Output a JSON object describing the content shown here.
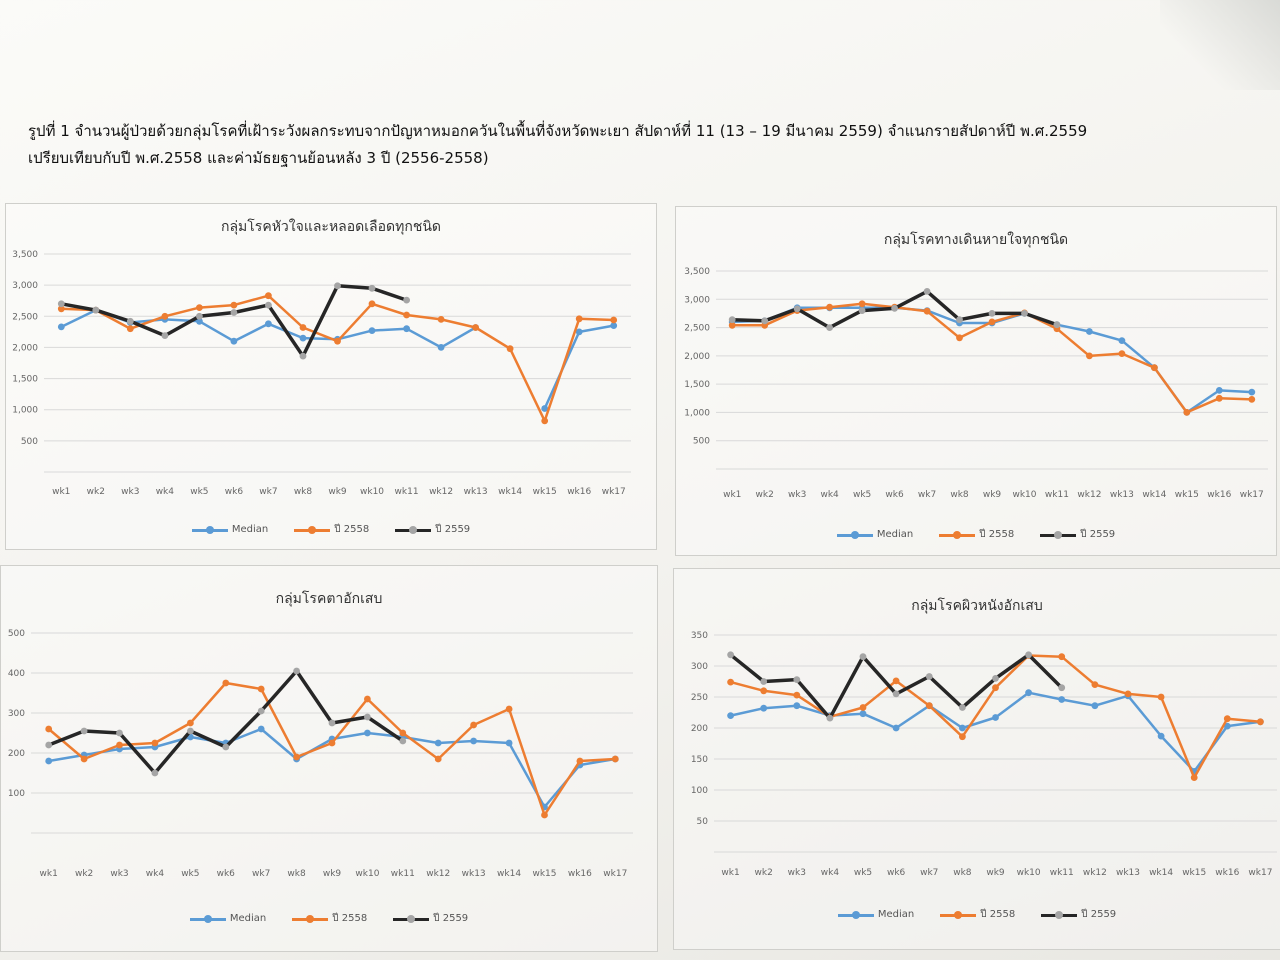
{
  "caption": {
    "line1": "รูปที่ 1 จำนวนผู้ป่วยด้วยกลุ่มโรคที่เฝ้าระวังผลกระทบจากปัญหาหมอกควันในพื้นที่จังหวัดพะเยา สัปดาห์ที่ 11 (13 – 19 มีนาคม 2559) จำแนกรายสัปดาห์ปี พ.ศ.2559",
    "line2": "เปรียบเทียบกับปี พ.ศ.2558 และค่ามัธยฐานย้อนหลัง 3 ปี (2556-2558)"
  },
  "colors": {
    "median": "#5b9bd5",
    "y2558": "#ed7d31",
    "y2559": "#262626",
    "y2559_marker": "#a5a5a5"
  },
  "legend": {
    "median": "Median",
    "y2558": "ปี 2558",
    "y2559": "ปี 2559"
  },
  "chart_data": [
    {
      "type": "line",
      "title": "กลุ่มโรคหัวใจและหลอดเลือดทุกชนิด",
      "x": [
        "wk1",
        "wk2",
        "wk3",
        "wk4",
        "wk5",
        "wk6",
        "wk7",
        "wk8",
        "wk9",
        "wk10",
        "wk11",
        "wk12",
        "wk13",
        "wk14",
        "wk15",
        "wk16",
        "wk17"
      ],
      "y_ticks": [
        "3,500",
        "3,000",
        "2,500",
        "2,000",
        "1,500",
        "1,000",
        "500",
        ""
      ],
      "ylim": [
        0,
        3500
      ],
      "grid": true,
      "legend_position": "bottom",
      "series": [
        {
          "name": "Median",
          "values": [
            2330,
            2600,
            2400,
            2450,
            2420,
            2100,
            2380,
            2150,
            2130,
            2270,
            2300,
            2000,
            2320,
            null,
            1020,
            2250,
            2350
          ]
        },
        {
          "name": "ปี 2558",
          "values": [
            2620,
            2600,
            2300,
            2500,
            2640,
            2680,
            2830,
            2320,
            2100,
            2700,
            2520,
            2450,
            2320,
            1980,
            820,
            2460,
            2440
          ]
        },
        {
          "name": "ปี 2559",
          "values": [
            2700,
            2600,
            2420,
            2190,
            2500,
            2560,
            2680,
            1860,
            2990,
            2950,
            2760,
            null,
            null,
            null,
            null,
            null,
            null
          ]
        }
      ]
    },
    {
      "type": "line",
      "title": "กลุ่มโรคทางเดินหายใจทุกชนิด",
      "x": [
        "wk1",
        "wk2",
        "wk3",
        "wk4",
        "wk5",
        "wk6",
        "wk7",
        "wk8",
        "wk9",
        "wk10",
        "wk11",
        "wk12",
        "wk13",
        "wk14",
        "wk15",
        "wk16",
        "wk17"
      ],
      "y_ticks": [
        "3,500",
        "3,000",
        "2,500",
        "2,000",
        "1,500",
        "1,000",
        "500",
        ""
      ],
      "ylim": [
        0,
        3500
      ],
      "grid": true,
      "legend_position": "bottom",
      "series": [
        {
          "name": "Median",
          "values": [
            2600,
            2620,
            2850,
            2850,
            2850,
            2850,
            2800,
            2580,
            2580,
            2750,
            2550,
            2430,
            2270,
            1790,
            1000,
            1390,
            1360
          ]
        },
        {
          "name": "ปี 2558",
          "values": [
            2540,
            2540,
            2800,
            2860,
            2920,
            2860,
            2790,
            2320,
            2600,
            2760,
            2480,
            2000,
            2040,
            1790,
            1000,
            1250,
            1230
          ]
        },
        {
          "name": "ปี 2559",
          "values": [
            2640,
            2620,
            2830,
            2500,
            2800,
            2840,
            3140,
            2640,
            2750,
            2750,
            2550,
            null,
            null,
            null,
            null,
            null,
            null
          ]
        }
      ]
    },
    {
      "type": "line",
      "title": "กลุ่มโรคตาอักเสบ",
      "x": [
        "wk1",
        "wk2",
        "wk3",
        "wk4",
        "wk5",
        "wk6",
        "wk7",
        "wk8",
        "wk9",
        "wk10",
        "wk11",
        "wk12",
        "wk13",
        "wk14",
        "wk15",
        "wk16",
        "wk17"
      ],
      "y_ticks": [
        "500",
        "400",
        "300",
        "200",
        "100",
        ""
      ],
      "ylim": [
        0,
        500
      ],
      "grid": true,
      "legend_position": "bottom",
      "series": [
        {
          "name": "Median",
          "values": [
            180,
            195,
            210,
            215,
            240,
            225,
            260,
            185,
            235,
            250,
            240,
            225,
            230,
            225,
            65,
            170,
            185
          ]
        },
        {
          "name": "ปี 2558",
          "values": [
            260,
            185,
            220,
            225,
            275,
            375,
            360,
            190,
            225,
            335,
            250,
            185,
            270,
            310,
            45,
            180,
            185
          ]
        },
        {
          "name": "ปี 2559",
          "values": [
            220,
            255,
            250,
            150,
            255,
            215,
            305,
            405,
            275,
            290,
            230,
            null,
            null,
            null,
            null,
            null,
            null
          ]
        }
      ]
    },
    {
      "type": "line",
      "title": "กลุ่มโรคผิวหนังอักเสบ",
      "x": [
        "wk1",
        "wk2",
        "wk3",
        "wk4",
        "wk5",
        "wk6",
        "wk7",
        "wk8",
        "wk9",
        "wk10",
        "wk11",
        "wk12",
        "wk13",
        "wk14",
        "wk15",
        "wk16",
        "wk17"
      ],
      "y_ticks": [
        "350",
        "300",
        "250",
        "200",
        "150",
        "100",
        "50",
        ""
      ],
      "ylim": [
        0,
        350
      ],
      "grid": true,
      "legend_position": "bottom",
      "series": [
        {
          "name": "Median",
          "values": [
            220,
            232,
            236,
            220,
            223,
            200,
            236,
            200,
            217,
            257,
            246,
            236,
            252,
            187,
            130,
            203,
            210
          ]
        },
        {
          "name": "ปี 2558",
          "values": [
            274,
            260,
            253,
            218,
            233,
            276,
            236,
            186,
            265,
            317,
            315,
            270,
            255,
            250,
            120,
            215,
            210
          ]
        },
        {
          "name": "ปี 2559",
          "values": [
            318,
            275,
            278,
            216,
            315,
            255,
            283,
            233,
            280,
            318,
            265,
            null,
            null,
            null,
            null,
            null,
            null
          ]
        }
      ]
    }
  ]
}
